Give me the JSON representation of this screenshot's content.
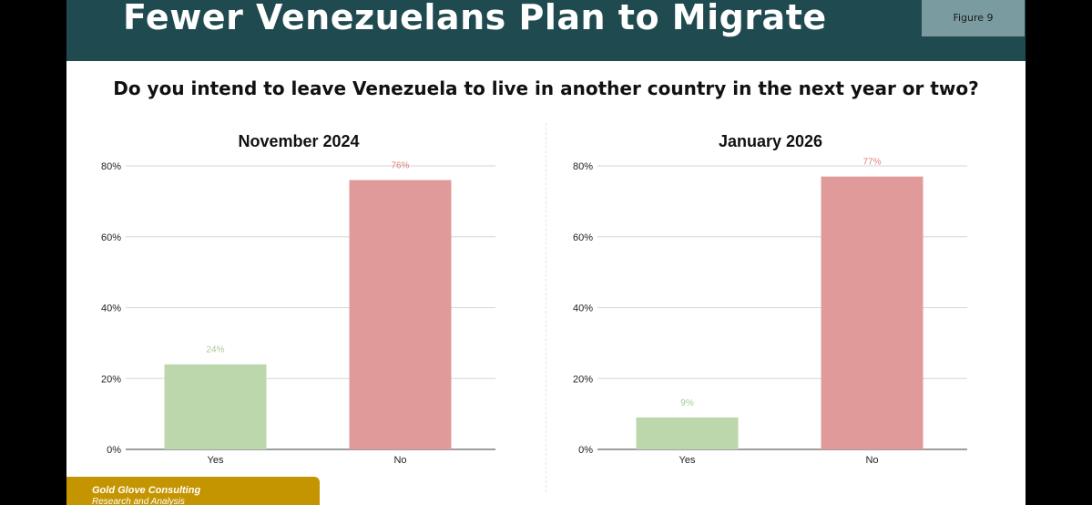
{
  "header": {
    "title": "Fewer Venezuelans Plan to Migrate",
    "figure_label": "Figure 9"
  },
  "question": "Do you intend to leave Venezuela to live in another country in the next year or two?",
  "colors": {
    "header_bg": "#1f4a4f",
    "figure_tag_bg": "#7a9ca1",
    "yes_bar": "#bcd7ab",
    "no_bar": "#e09a9a",
    "yes_label": "#a9c999",
    "no_label": "#e07f7f",
    "footer_bg": "#c49500"
  },
  "footer": {
    "company": "Gold Glove Consulting",
    "subtitle": "Research and Analysis"
  },
  "chart_data": [
    {
      "type": "bar",
      "title": "November 2024",
      "categories": [
        "Yes",
        "No"
      ],
      "values": [
        24,
        76
      ],
      "value_labels": [
        "24%",
        "76%"
      ],
      "ylim": [
        0,
        80
      ],
      "yticks": [
        "0%",
        "20%",
        "40%",
        "60%",
        "80%"
      ],
      "ytick_values": [
        0,
        20,
        40,
        60,
        80
      ],
      "grid": true
    },
    {
      "type": "bar",
      "title": "January 2026",
      "categories": [
        "Yes",
        "No"
      ],
      "values": [
        9,
        77
      ],
      "value_labels": [
        "9%",
        "77%"
      ],
      "ylim": [
        0,
        80
      ],
      "yticks": [
        "0%",
        "20%",
        "40%",
        "60%",
        "80%"
      ],
      "ytick_values": [
        0,
        20,
        40,
        60,
        80
      ],
      "grid": true
    }
  ]
}
